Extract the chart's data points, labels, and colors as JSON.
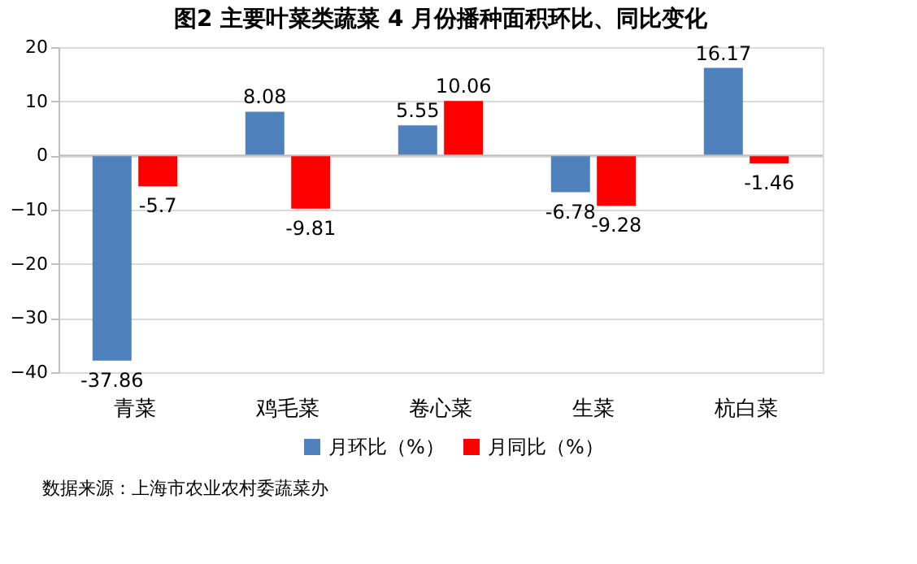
{
  "chart_data": {
    "type": "bar",
    "title": "图2  主要叶菜类蔬菜 4 月份播种面积环比、同比变化",
    "categories": [
      "青菜",
      "鸡毛菜",
      "卷心菜",
      "生菜",
      "杭白菜"
    ],
    "series": [
      {
        "name": "月环比（%）",
        "color": "#4f81bd",
        "values": [
          -37.86,
          8.08,
          5.55,
          -6.78,
          16.17
        ]
      },
      {
        "name": "月同比（%）",
        "color": "#ff0000",
        "values": [
          -5.7,
          -9.81,
          10.06,
          -9.28,
          -1.46
        ]
      }
    ],
    "ylim": [
      -40,
      20
    ],
    "yticks": [
      -40,
      -30,
      -20,
      -10,
      0,
      10,
      20
    ],
    "grid": "y",
    "legend": "bottom",
    "data_labels": true,
    "annotations": [
      "数据来源：上海市农业农村委蔬菜办"
    ]
  }
}
